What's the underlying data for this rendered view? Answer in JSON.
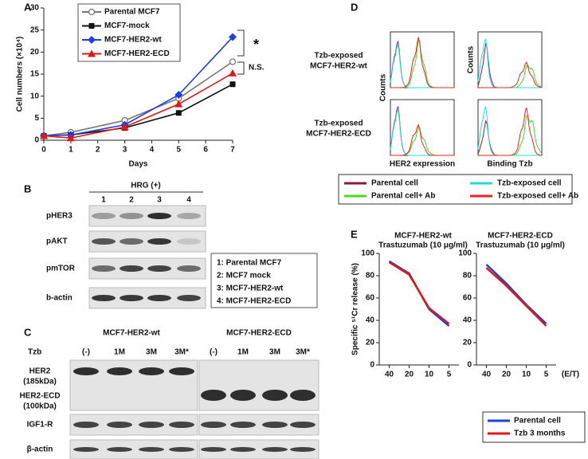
{
  "panel_labels": [
    "A",
    "B",
    "C",
    "D",
    "E"
  ],
  "chart_data": [
    {
      "type": "line",
      "x_label": "Days",
      "y_label": "Cell numbers (×10⁴)",
      "x": [
        0,
        1,
        3,
        5,
        7
      ],
      "xlim": [
        0,
        7
      ],
      "xticks": [
        0,
        1,
        2,
        3,
        4,
        5,
        6,
        7
      ],
      "ylim": [
        0,
        30
      ],
      "yticks": [
        0,
        5,
        10,
        15,
        20,
        25,
        30
      ],
      "series": [
        {
          "name": "Parental MCF7",
          "color": "#777777",
          "marker": "circle-open",
          "values": [
            1,
            1.8,
            4.5,
            9.5,
            17.8
          ]
        },
        {
          "name": "MCF7-mock",
          "color": "#111111",
          "marker": "square",
          "values": [
            1,
            1.2,
            2.8,
            6.2,
            12.7
          ]
        },
        {
          "name": "MCF7-HER2-wt",
          "color": "#1f3fe0",
          "marker": "diamond",
          "values": [
            1,
            1.2,
            3.5,
            10.3,
            23.4
          ]
        },
        {
          "name": "MCF7-HER2-ECD",
          "color": "#e01818",
          "marker": "triangle",
          "values": [
            1,
            0.5,
            3.0,
            8.2,
            15.2
          ]
        }
      ],
      "annotations": [
        "*",
        "N.S."
      ],
      "legend": true
    },
    {
      "type": "line",
      "title": [
        "MCF7-HER2-wt",
        "Trastuzumab (10 μg/ml)"
      ],
      "y_label": "Specific ⁵¹Cr release (%)",
      "categories": [
        "40",
        "20",
        "10",
        "5"
      ],
      "ylim": [
        0,
        100
      ],
      "yticks": [
        0,
        20,
        40,
        60,
        80,
        100
      ],
      "series": [
        {
          "name": "Parental cell",
          "color": "#1f3fe0",
          "values": [
            93,
            82,
            50,
            35
          ]
        },
        {
          "name": "Tzb 3 months",
          "color": "#e01818",
          "values": [
            92,
            81,
            51,
            37
          ]
        }
      ]
    },
    {
      "type": "line",
      "title": [
        "MCF7-HER2-ECD",
        "Trastuzumab (10 μg/ml)"
      ],
      "x_label": "(E/T)",
      "categories": [
        "40",
        "20",
        "10",
        "5"
      ],
      "ylim": [
        0,
        100
      ],
      "yticks": [
        0,
        20,
        40,
        60,
        80,
        100
      ],
      "series": [
        {
          "name": "Parental cell",
          "color": "#1f3fe0",
          "values": [
            90,
            73,
            54,
            37
          ]
        },
        {
          "name": "Tzb 3 months",
          "color": "#e01818",
          "values": [
            87,
            71,
            53,
            35
          ]
        }
      ],
      "legend": true
    }
  ],
  "panel_b": {
    "header": "HRG (+)",
    "lanes": [
      "1",
      "2",
      "3",
      "4"
    ],
    "rows": [
      "pHER3",
      "pAKT",
      "pmTOR",
      "b-actin"
    ],
    "key": [
      "1:  Parental MCF7",
      "2:  MCF7 mock",
      "3:  MCF7-HER2-wt",
      "4:  MCF7-HER2-ECD"
    ]
  },
  "panel_c": {
    "groups": [
      "MCF7-HER2-wt",
      "MCF7-HER2-ECD"
    ],
    "treatment_label": "Tzb",
    "lanes": [
      "(-)",
      "1M",
      "3M",
      "3M*"
    ],
    "rows": [
      [
        "HER2",
        "(185kDa)"
      ],
      [
        "HER2-ECD",
        "(100kDa)"
      ],
      [
        "IGF1-R"
      ],
      [
        "β-actin"
      ]
    ]
  },
  "panel_d": {
    "rows": [
      [
        "Tzb-exposed",
        "MCF7-HER2-wt"
      ],
      [
        "Tzb-exposed",
        "MCF7-HER2-ECD"
      ]
    ],
    "y_label": "Counts",
    "x_labels": [
      "HER2 expression",
      "Binding Tzb"
    ],
    "legend": [
      {
        "name": "Parental cell",
        "color": "#8b1a3a"
      },
      {
        "name": "Parental cell+ Ab",
        "color": "#44dd22"
      },
      {
        "name": "Tzb-exposed cell",
        "color": "#22dddd"
      },
      {
        "name": "Tzb-exposed cell+ Ab",
        "color": "#ee2222"
      }
    ]
  }
}
